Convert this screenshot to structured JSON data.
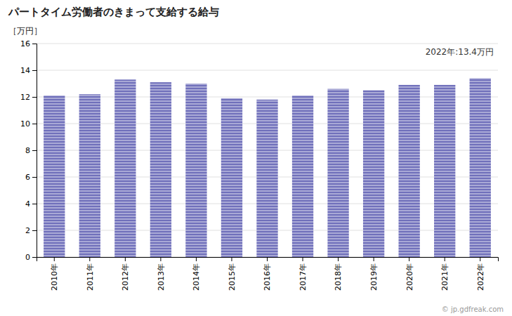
{
  "chart_data": {
    "type": "bar",
    "title": "パートタイム労働者のきまって支給する給与",
    "y_label": "［万円］",
    "annotations": [
      "2022年:13.4万円",
      "© jp.gdfreak.com"
    ],
    "categories": [
      "2010年",
      "2011年",
      "2012年",
      "2013年",
      "2014年",
      "2015年",
      "2016年",
      "2017年",
      "2018年",
      "2019年",
      "2020年",
      "2021年",
      "2022年"
    ],
    "values": [
      12.1,
      12.2,
      13.3,
      13.1,
      13.0,
      11.9,
      11.8,
      12.1,
      12.6,
      12.5,
      12.9,
      12.9,
      13.4
    ],
    "color": "#7070bb",
    "ylim": [
      0,
      16
    ],
    "yticks": [
      0,
      2,
      4,
      6,
      8,
      10,
      12,
      14,
      16
    ],
    "grid": true
  }
}
